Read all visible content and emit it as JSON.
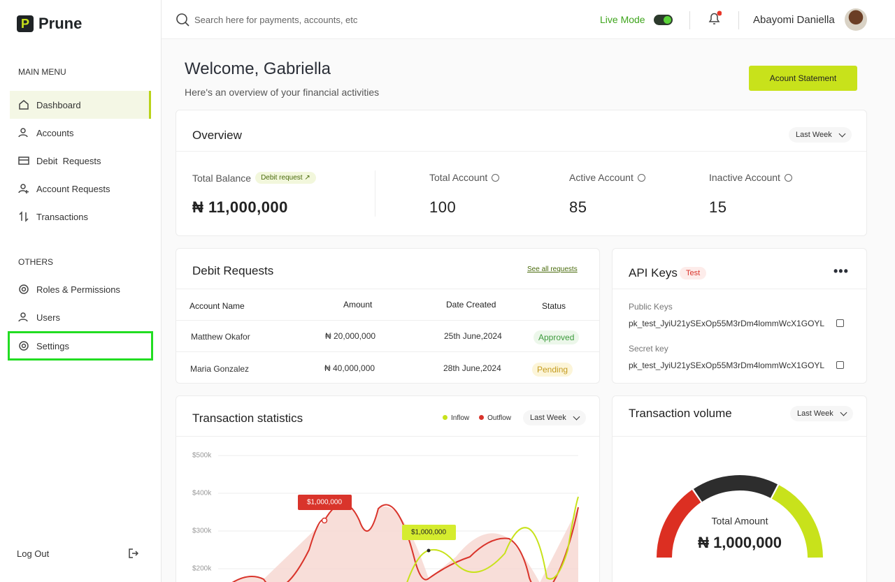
{
  "sidebar": {
    "brand": "Prune",
    "main_menu_title": "MAIN MENU",
    "main_menu": [
      "Dashboard",
      "Accounts",
      "Debit  Requests",
      "Account Requests",
      "Transactions"
    ],
    "others_title": "OTHERS",
    "others": [
      "Roles & Permissions",
      "Users",
      "Settings"
    ],
    "logout": "Log Out"
  },
  "header": {
    "search_placeholder": "Search here for payments, accounts, etc",
    "live_mode": "Live Mode",
    "user_name": "Abayomi Daniella"
  },
  "welcome": {
    "title": "Welcome, Gabriella",
    "subtitle": "Here's an overview of your financial activities",
    "button": "Acount Statement"
  },
  "overview": {
    "title": "Overview",
    "period": "Last Week",
    "total_balance": {
      "label": "Total Balance",
      "badge": "Debit request",
      "value": "₦ 11,000,000"
    },
    "stats": [
      {
        "label": "Total Account",
        "value": 100
      },
      {
        "label": "Active Account",
        "value": 85
      },
      {
        "label": "Inactive Account",
        "value": 15
      }
    ]
  },
  "debit_requests": {
    "title": "Debit Requests",
    "link": "See all requests",
    "columns": [
      "Account Name",
      "Amount",
      "Date Created",
      "Status"
    ],
    "rows": [
      [
        "Matthew Okafor",
        "₦ 20,000,000",
        "25th June,2024",
        "Approved"
      ],
      [
        "Maria Gonzalez",
        "₦ 40,000,000",
        "28th June,2024",
        "Pending"
      ]
    ]
  },
  "api_keys": {
    "title": "API Keys",
    "badge": "Test",
    "public_label": "Public Keys",
    "public_key": "pk_test_JyiU21ySExOp55M3rDm4lommWcX1GOYL",
    "secret_label": "Secret key",
    "secret_key": "pk_test_JyiU21ySExOp55M3rDm4lommWcX1GOYL"
  },
  "transaction_statistics": {
    "title": "Transaction statistics",
    "legend": [
      "Inflow",
      "Outflow"
    ],
    "period": "Last Week",
    "yticks": [
      {
        "value": 500000,
        "label": "$500k"
      },
      {
        "value": 400000,
        "label": "$400k"
      },
      {
        "value": 300000,
        "label": "$300k"
      },
      {
        "value": 200000,
        "label": "$200k"
      }
    ],
    "annotations": [
      "$1,000,000",
      "$1,000,000"
    ]
  },
  "transaction_volume": {
    "title": "Transaction volume",
    "period": "Last Week",
    "total_label": "Total Amount",
    "total_value": "₦ 1,000,000"
  }
}
